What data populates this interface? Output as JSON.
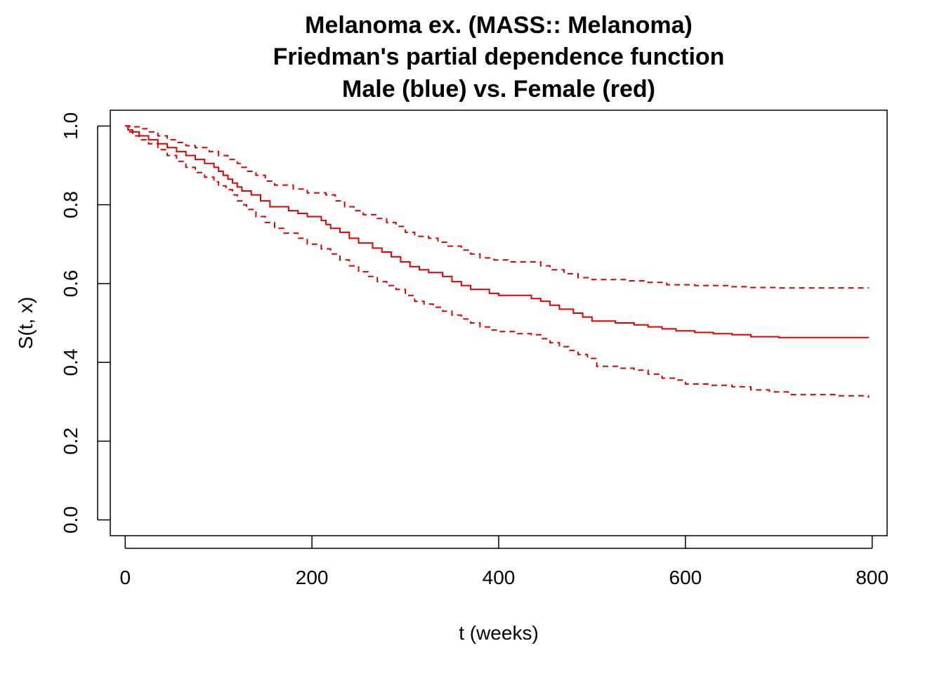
{
  "chart_data": {
    "type": "line",
    "title_lines": [
      "Melanoma ex. (MASS:: Melanoma)",
      "Friedman's partial dependence function",
      "Male (blue) vs. Female (red)"
    ],
    "xlabel": "t (weeks)",
    "ylabel": "S(t, x)",
    "xlim": [
      -16,
      816
    ],
    "ylim": [
      -0.04,
      1.04
    ],
    "x_ticks": [
      0,
      200,
      400,
      600,
      800
    ],
    "x_tick_labels": [
      "0",
      "200",
      "400",
      "600",
      "800"
    ],
    "y_ticks": [
      0.0,
      0.2,
      0.4,
      0.6,
      0.8,
      1.0
    ],
    "y_tick_labels": [
      "0.0",
      "0.2",
      "0.4",
      "0.6",
      "0.8",
      "1.0"
    ],
    "grid": false,
    "series": [
      {
        "color": "#e00000",
        "dash": "solid",
        "points": [
          [
            0,
            1.0
          ],
          [
            3,
            0.99
          ],
          [
            8,
            0.985
          ],
          [
            15,
            0.975
          ],
          [
            25,
            0.965
          ],
          [
            35,
            0.955
          ],
          [
            45,
            0.945
          ],
          [
            55,
            0.935
          ],
          [
            65,
            0.925
          ],
          [
            75,
            0.915
          ],
          [
            85,
            0.905
          ],
          [
            95,
            0.895
          ],
          [
            100,
            0.885
          ],
          [
            105,
            0.875
          ],
          [
            110,
            0.865
          ],
          [
            115,
            0.855
          ],
          [
            120,
            0.845
          ],
          [
            125,
            0.835
          ],
          [
            135,
            0.825
          ],
          [
            145,
            0.81
          ],
          [
            155,
            0.795
          ],
          [
            175,
            0.785
          ],
          [
            185,
            0.778
          ],
          [
            195,
            0.77
          ],
          [
            210,
            0.76
          ],
          [
            215,
            0.75
          ],
          [
            220,
            0.74
          ],
          [
            230,
            0.73
          ],
          [
            240,
            0.715
          ],
          [
            250,
            0.703
          ],
          [
            265,
            0.69
          ],
          [
            275,
            0.68
          ],
          [
            285,
            0.668
          ],
          [
            295,
            0.655
          ],
          [
            305,
            0.643
          ],
          [
            315,
            0.635
          ],
          [
            325,
            0.628
          ],
          [
            340,
            0.618
          ],
          [
            350,
            0.605
          ],
          [
            360,
            0.595
          ],
          [
            370,
            0.585
          ],
          [
            390,
            0.575
          ],
          [
            400,
            0.57
          ],
          [
            420,
            0.57
          ],
          [
            435,
            0.562
          ],
          [
            445,
            0.555
          ],
          [
            455,
            0.545
          ],
          [
            465,
            0.535
          ],
          [
            480,
            0.525
          ],
          [
            490,
            0.515
          ],
          [
            500,
            0.505
          ],
          [
            525,
            0.5
          ],
          [
            545,
            0.495
          ],
          [
            560,
            0.49
          ],
          [
            575,
            0.485
          ],
          [
            590,
            0.48
          ],
          [
            610,
            0.476
          ],
          [
            630,
            0.473
          ],
          [
            650,
            0.47
          ],
          [
            670,
            0.465
          ],
          [
            700,
            0.463
          ],
          [
            796,
            0.462
          ]
        ]
      },
      {
        "color": "#e00000",
        "dash": "dashed",
        "points": [
          [
            0,
            1.0
          ],
          [
            5,
            0.998
          ],
          [
            15,
            0.993
          ],
          [
            25,
            0.985
          ],
          [
            35,
            0.975
          ],
          [
            45,
            0.965
          ],
          [
            55,
            0.958
          ],
          [
            65,
            0.95
          ],
          [
            75,
            0.945
          ],
          [
            90,
            0.935
          ],
          [
            100,
            0.925
          ],
          [
            110,
            0.915
          ],
          [
            120,
            0.905
          ],
          [
            125,
            0.895
          ],
          [
            130,
            0.885
          ],
          [
            140,
            0.875
          ],
          [
            150,
            0.86
          ],
          [
            160,
            0.85
          ],
          [
            180,
            0.84
          ],
          [
            195,
            0.83
          ],
          [
            215,
            0.825
          ],
          [
            225,
            0.81
          ],
          [
            235,
            0.795
          ],
          [
            245,
            0.785
          ],
          [
            255,
            0.775
          ],
          [
            270,
            0.765
          ],
          [
            280,
            0.755
          ],
          [
            290,
            0.745
          ],
          [
            300,
            0.73
          ],
          [
            310,
            0.72
          ],
          [
            325,
            0.715
          ],
          [
            335,
            0.705
          ],
          [
            345,
            0.695
          ],
          [
            360,
            0.685
          ],
          [
            370,
            0.675
          ],
          [
            380,
            0.665
          ],
          [
            395,
            0.66
          ],
          [
            410,
            0.655
          ],
          [
            435,
            0.655
          ],
          [
            445,
            0.645
          ],
          [
            455,
            0.635
          ],
          [
            470,
            0.625
          ],
          [
            485,
            0.615
          ],
          [
            500,
            0.61
          ],
          [
            540,
            0.607
          ],
          [
            560,
            0.603
          ],
          [
            580,
            0.597
          ],
          [
            610,
            0.595
          ],
          [
            650,
            0.592
          ],
          [
            670,
            0.59
          ],
          [
            700,
            0.589
          ],
          [
            796,
            0.588
          ]
        ]
      },
      {
        "color": "#e00000",
        "dash": "dashed",
        "points": [
          [
            0,
            1.0
          ],
          [
            3,
            0.985
          ],
          [
            8,
            0.975
          ],
          [
            15,
            0.965
          ],
          [
            25,
            0.955
          ],
          [
            35,
            0.94
          ],
          [
            45,
            0.925
          ],
          [
            55,
            0.91
          ],
          [
            65,
            0.895
          ],
          [
            75,
            0.882
          ],
          [
            85,
            0.87
          ],
          [
            95,
            0.858
          ],
          [
            100,
            0.848
          ],
          [
            108,
            0.838
          ],
          [
            115,
            0.825
          ],
          [
            120,
            0.81
          ],
          [
            125,
            0.8
          ],
          [
            130,
            0.788
          ],
          [
            140,
            0.77
          ],
          [
            150,
            0.755
          ],
          [
            160,
            0.74
          ],
          [
            170,
            0.728
          ],
          [
            185,
            0.715
          ],
          [
            195,
            0.7
          ],
          [
            210,
            0.688
          ],
          [
            220,
            0.675
          ],
          [
            230,
            0.66
          ],
          [
            240,
            0.645
          ],
          [
            250,
            0.63
          ],
          [
            260,
            0.618
          ],
          [
            270,
            0.605
          ],
          [
            280,
            0.595
          ],
          [
            290,
            0.585
          ],
          [
            300,
            0.57
          ],
          [
            310,
            0.555
          ],
          [
            320,
            0.548
          ],
          [
            330,
            0.54
          ],
          [
            340,
            0.53
          ],
          [
            350,
            0.52
          ],
          [
            360,
            0.51
          ],
          [
            370,
            0.5
          ],
          [
            380,
            0.49
          ],
          [
            390,
            0.482
          ],
          [
            400,
            0.478
          ],
          [
            420,
            0.473
          ],
          [
            435,
            0.47
          ],
          [
            445,
            0.46
          ],
          [
            455,
            0.45
          ],
          [
            465,
            0.44
          ],
          [
            475,
            0.43
          ],
          [
            485,
            0.42
          ],
          [
            495,
            0.41
          ],
          [
            505,
            0.39
          ],
          [
            530,
            0.385
          ],
          [
            545,
            0.38
          ],
          [
            560,
            0.37
          ],
          [
            575,
            0.36
          ],
          [
            590,
            0.355
          ],
          [
            600,
            0.345
          ],
          [
            625,
            0.342
          ],
          [
            650,
            0.338
          ],
          [
            670,
            0.33
          ],
          [
            690,
            0.325
          ],
          [
            710,
            0.318
          ],
          [
            760,
            0.315
          ],
          [
            796,
            0.31
          ]
        ]
      }
    ]
  }
}
